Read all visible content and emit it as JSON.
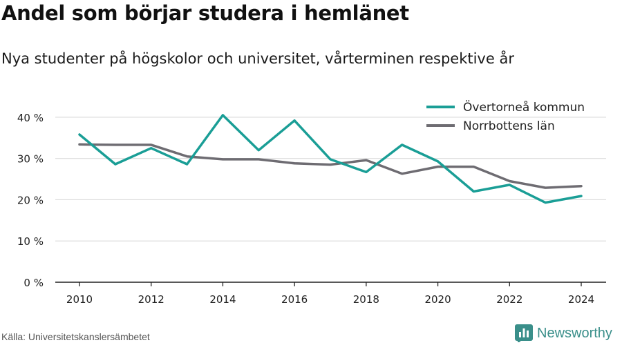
{
  "chart_data": {
    "type": "line",
    "title": "Andel som börjar studera i hemlänet",
    "subtitle": "Nya studenter på högskolor och universitet, vårterminen respektive år",
    "x": [
      2010,
      2011,
      2012,
      2013,
      2014,
      2015,
      2016,
      2017,
      2018,
      2019,
      2020,
      2021,
      2022,
      2023,
      2024
    ],
    "x_ticks": [
      2010,
      2012,
      2014,
      2016,
      2018,
      2020,
      2022,
      2024
    ],
    "y_ticks": [
      0,
      10,
      20,
      30,
      40
    ],
    "y_tick_labels": [
      "0 %",
      "10 %",
      "20 %",
      "30 %",
      "40 %"
    ],
    "ylim": [
      0,
      45
    ],
    "grid": true,
    "legend_position": "top-right",
    "series": [
      {
        "name": "Övertorneå kommun",
        "color": "#1a9e96",
        "values": [
          35.8,
          28.6,
          32.5,
          28.6,
          40.5,
          32.0,
          39.2,
          29.8,
          26.7,
          33.3,
          29.3,
          22.0,
          23.6,
          19.3,
          20.9
        ]
      },
      {
        "name": "Norrbottens län",
        "color": "#6e6c72",
        "values": [
          33.4,
          33.3,
          33.3,
          30.5,
          29.8,
          29.8,
          28.8,
          28.5,
          29.6,
          26.3,
          28.0,
          28.0,
          24.5,
          22.9,
          23.3
        ]
      }
    ]
  },
  "footer": {
    "source": "Källa: Universitetskanslersämbetet",
    "brand": "Newsworthy",
    "brand_color": "#3a8f8a",
    "brand_icon": "newsworthy-logo-icon"
  }
}
